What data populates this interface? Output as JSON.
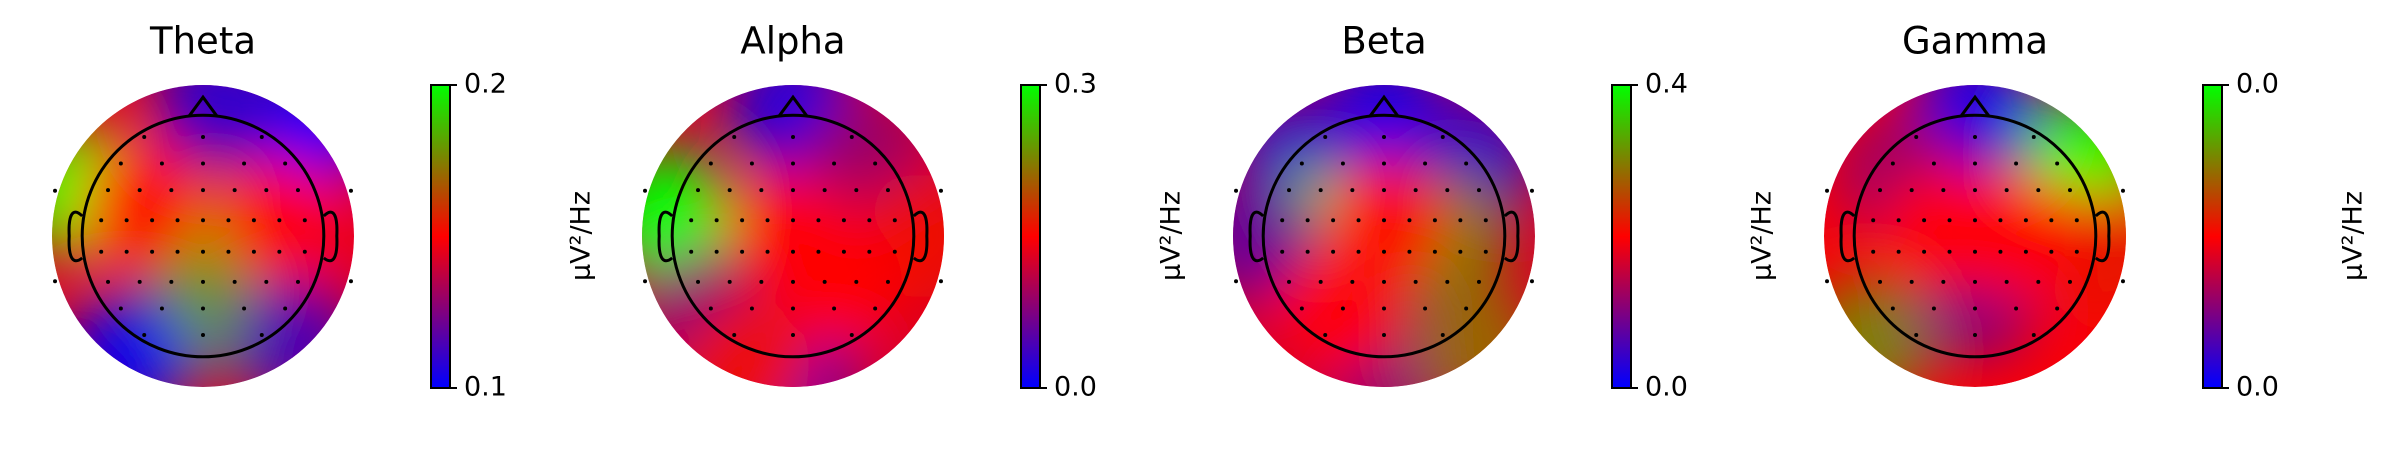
{
  "chart_data": [
    {
      "type": "topomap",
      "title": "Theta",
      "colorbar_label": "µV²/Hz",
      "colormap": [
        "#0000ff",
        "#ff0000",
        "#00ff00"
      ],
      "vlim": [
        0.1,
        0.2
      ],
      "cticks": [
        0.1,
        0.2
      ],
      "samples": [
        {
          "x": -0.85,
          "y": 0.3,
          "value": 0.2
        },
        {
          "x": 0.0,
          "y": -0.1,
          "value": 0.19
        },
        {
          "x": 0.0,
          "y": -0.5,
          "value": 0.18
        },
        {
          "x": 0.7,
          "y": 0.7,
          "value": 0.1
        },
        {
          "x": 0.1,
          "y": 0.9,
          "value": 0.11
        },
        {
          "x": -0.5,
          "y": -0.8,
          "value": 0.105
        },
        {
          "x": 0.6,
          "y": -0.7,
          "value": 0.115
        },
        {
          "x": -0.4,
          "y": 0.2,
          "value": 0.15
        },
        {
          "x": 0.5,
          "y": 0.1,
          "value": 0.15
        }
      ]
    },
    {
      "type": "topomap",
      "title": "Alpha",
      "colorbar_label": "µV²/Hz",
      "colormap": [
        "#0000ff",
        "#ff0000",
        "#00ff00"
      ],
      "vlim": [
        0.0,
        0.3
      ],
      "cticks": [
        {
          "value": 0,
          "label": "0.0"
        },
        0.3
      ],
      "samples": [
        {
          "x": 0.0,
          "y": 0.85,
          "value": 0.02
        },
        {
          "x": -0.85,
          "y": 0.15,
          "value": 0.3
        },
        {
          "x": 0.0,
          "y": -0.9,
          "value": 0.05
        },
        {
          "x": -0.6,
          "y": -0.5,
          "value": 0.08
        },
        {
          "x": -0.3,
          "y": -0.85,
          "value": 0.16
        },
        {
          "x": 0.5,
          "y": 0.5,
          "value": 0.09
        },
        {
          "x": 0.0,
          "y": 0.0,
          "value": 0.15
        },
        {
          "x": 0.85,
          "y": 0.0,
          "value": 0.16
        },
        {
          "x": 0.3,
          "y": -0.3,
          "value": 0.15
        }
      ]
    },
    {
      "type": "topomap",
      "title": "Beta",
      "colorbar_label": "µV²/Hz",
      "colormap": [
        "#0000ff",
        "#ff0000",
        "#00ff00"
      ],
      "vlim": [
        0.0,
        0.4
      ],
      "cticks": [
        {
          "value": 0,
          "label": "0.0"
        },
        0.4
      ],
      "samples": [
        {
          "x": 0.0,
          "y": 0.8,
          "value": 0.02
        },
        {
          "x": -0.6,
          "y": 0.55,
          "value": 0.05
        },
        {
          "x": 0.6,
          "y": 0.55,
          "value": 0.05
        },
        {
          "x": -0.45,
          "y": 0.0,
          "value": 0.4
        },
        {
          "x": 0.4,
          "y": 0.0,
          "value": 0.3
        },
        {
          "x": -0.85,
          "y": 0.0,
          "value": 0.08
        },
        {
          "x": 0.0,
          "y": -0.8,
          "value": 0.1
        },
        {
          "x": 0.6,
          "y": -0.75,
          "value": 0.28
        },
        {
          "x": 0.0,
          "y": 0.1,
          "value": 0.2
        },
        {
          "x": -0.3,
          "y": -0.5,
          "value": 0.2
        }
      ]
    },
    {
      "type": "topomap",
      "title": "Gamma",
      "colorbar_label": "µV²/Hz",
      "colormap": [
        "#0000ff",
        "#ff0000",
        "#00ff00"
      ],
      "vlim": [
        0.0,
        0.04
      ],
      "cticks": [
        {
          "value": 0,
          "label": "0.0"
        },
        {
          "value": 0.04,
          "label": "0.0"
        }
      ],
      "samples": [
        {
          "x": 0.0,
          "y": 0.85,
          "value": 0.002
        },
        {
          "x": 0.75,
          "y": 0.5,
          "value": 0.04
        },
        {
          "x": -0.7,
          "y": -0.7,
          "value": 0.03
        },
        {
          "x": 0.0,
          "y": -0.4,
          "value": 0.01
        },
        {
          "x": -0.5,
          "y": 0.4,
          "value": 0.012
        },
        {
          "x": 0.85,
          "y": -0.1,
          "value": 0.022
        },
        {
          "x": -0.2,
          "y": 0.05,
          "value": 0.02
        },
        {
          "x": 0.3,
          "y": 0.0,
          "value": 0.02
        }
      ]
    }
  ]
}
